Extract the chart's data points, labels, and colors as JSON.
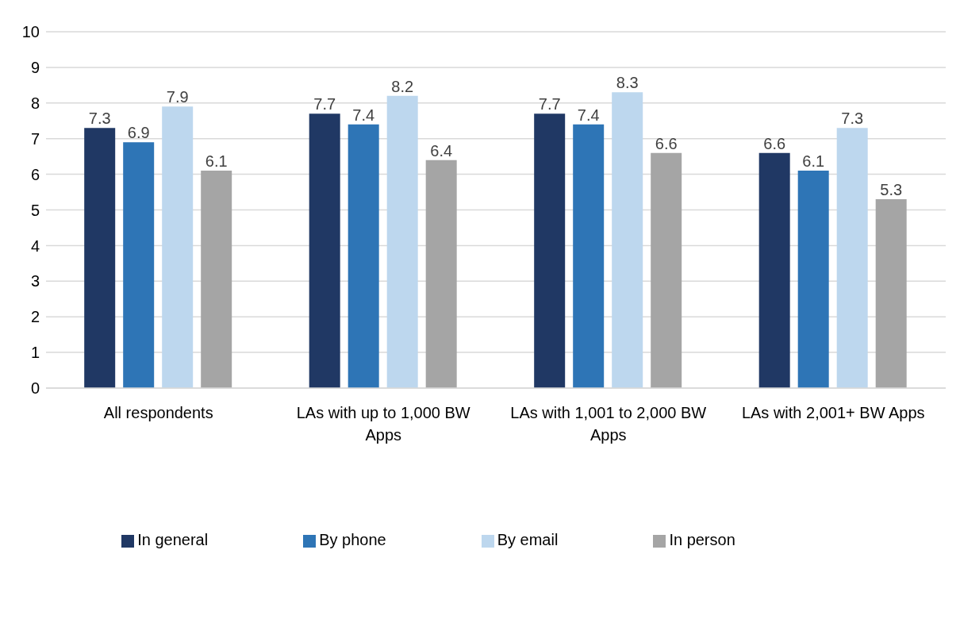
{
  "chart_data": {
    "type": "bar",
    "categories": [
      "All respondents",
      "LAs with up to 1,000 BW Apps",
      "LAs with 1,001 to 2,000 BW Apps",
      "LAs with 2,001+ BW Apps"
    ],
    "series": [
      {
        "name": "In general",
        "color": "#203864",
        "values": [
          7.3,
          7.7,
          7.7,
          6.6
        ]
      },
      {
        "name": "By phone",
        "color": "#2e75b6",
        "values": [
          6.9,
          7.4,
          7.4,
          6.1
        ]
      },
      {
        "name": "By email",
        "color": "#bdd7ee",
        "values": [
          7.9,
          8.2,
          8.3,
          7.3
        ]
      },
      {
        "name": "In person",
        "color": "#a5a5a5",
        "values": [
          6.1,
          6.4,
          6.6,
          5.3
        ]
      }
    ],
    "ylim": [
      0,
      10
    ],
    "yticks": [
      0,
      1,
      2,
      3,
      4,
      5,
      6,
      7,
      8,
      9,
      10
    ],
    "grid": "y",
    "legend": "bottom",
    "data_labels": true
  }
}
